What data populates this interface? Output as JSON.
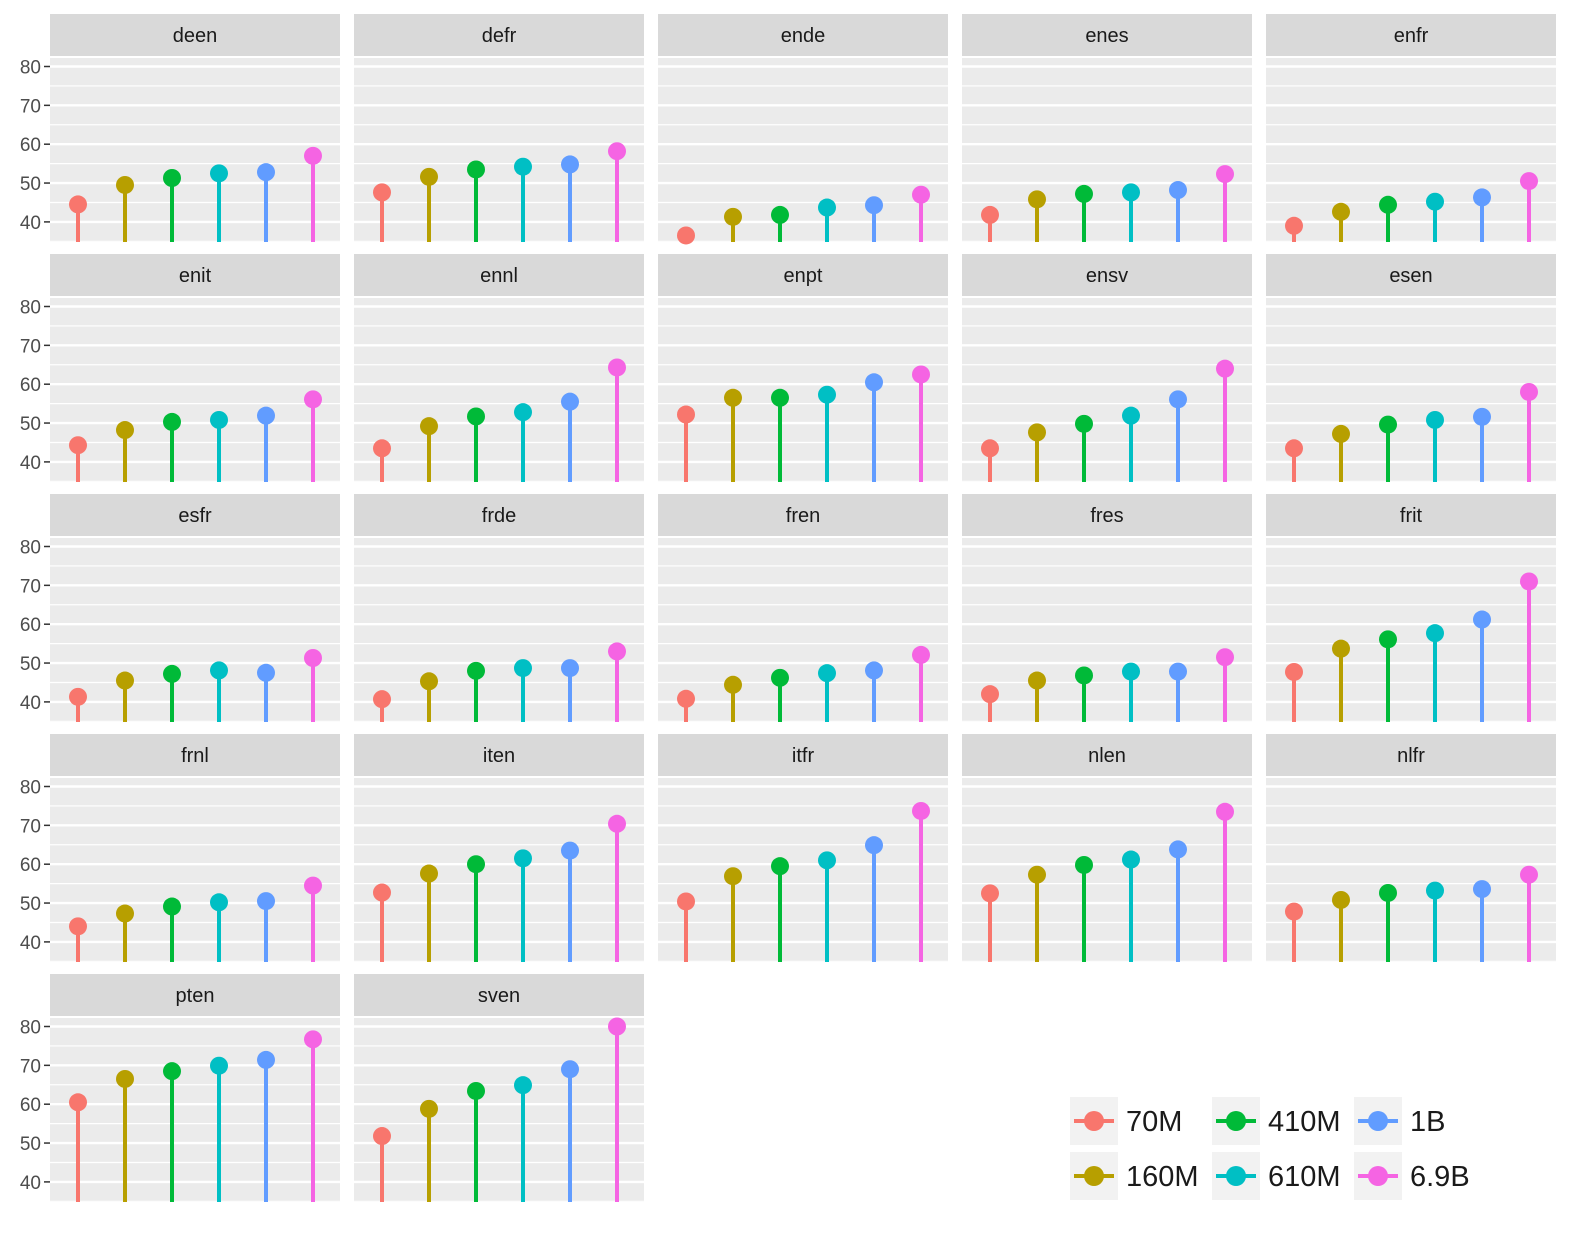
{
  "chart_data": {
    "type": "lollipop",
    "title": "",
    "xlabel": "",
    "ylabel": "",
    "ylim": [
      35,
      80
    ],
    "yticks": [
      40,
      50,
      60,
      70,
      80
    ],
    "grid": true,
    "legend_position": "bottom-right",
    "series": [
      {
        "name": "70M",
        "color": "#F8766D"
      },
      {
        "name": "160M",
        "color": "#B79F00"
      },
      {
        "name": "410M",
        "color": "#00BA38"
      },
      {
        "name": "610M",
        "color": "#00BFC4"
      },
      {
        "name": "1B",
        "color": "#619CFF"
      },
      {
        "name": "6.9B",
        "color": "#F564E3"
      }
    ],
    "panels": [
      {
        "label": "deen",
        "values": [
          44.5,
          49.5,
          51.3,
          52.5,
          52.8,
          57.0
        ]
      },
      {
        "label": "defr",
        "values": [
          47.6,
          51.6,
          53.5,
          54.2,
          54.8,
          58.2
        ]
      },
      {
        "label": "ende",
        "values": [
          36.5,
          41.3,
          41.8,
          43.7,
          44.3,
          47.0
        ]
      },
      {
        "label": "enes",
        "values": [
          41.8,
          45.8,
          47.2,
          47.6,
          48.2,
          52.3
        ]
      },
      {
        "label": "enfr",
        "values": [
          39.0,
          42.6,
          44.4,
          45.2,
          46.3,
          50.5
        ]
      },
      {
        "label": "enit",
        "values": [
          44.3,
          48.2,
          50.3,
          50.8,
          51.9,
          56.1
        ]
      },
      {
        "label": "ennl",
        "values": [
          43.5,
          49.2,
          51.7,
          52.8,
          55.5,
          64.3
        ]
      },
      {
        "label": "enpt",
        "values": [
          52.2,
          56.5,
          56.5,
          57.3,
          60.5,
          62.5
        ]
      },
      {
        "label": "ensv",
        "values": [
          43.5,
          47.6,
          49.8,
          51.9,
          56.1,
          64.0
        ]
      },
      {
        "label": "esen",
        "values": [
          43.5,
          47.2,
          49.6,
          50.8,
          51.6,
          58.0
        ]
      },
      {
        "label": "esfr",
        "values": [
          41.3,
          45.5,
          47.2,
          48.1,
          47.5,
          51.3
        ]
      },
      {
        "label": "frde",
        "values": [
          40.7,
          45.3,
          48.0,
          48.7,
          48.7,
          53.0
        ]
      },
      {
        "label": "fren",
        "values": [
          40.8,
          44.4,
          46.2,
          47.4,
          48.1,
          52.1
        ]
      },
      {
        "label": "fres",
        "values": [
          42.0,
          45.5,
          46.8,
          47.8,
          47.8,
          51.5
        ]
      },
      {
        "label": "frit",
        "values": [
          47.7,
          53.7,
          56.1,
          57.7,
          61.2,
          71.0
        ]
      },
      {
        "label": "frnl",
        "values": [
          44.0,
          47.3,
          49.1,
          50.2,
          50.5,
          54.5
        ]
      },
      {
        "label": "iten",
        "values": [
          52.7,
          57.6,
          60.0,
          61.5,
          63.5,
          70.4
        ]
      },
      {
        "label": "itfr",
        "values": [
          50.4,
          56.9,
          59.5,
          61.0,
          64.9,
          73.7
        ]
      },
      {
        "label": "nlen",
        "values": [
          52.5,
          57.3,
          59.8,
          61.2,
          63.8,
          73.5
        ]
      },
      {
        "label": "nlfr",
        "values": [
          47.8,
          50.8,
          52.6,
          53.2,
          53.6,
          57.3
        ]
      },
      {
        "label": "pten",
        "values": [
          60.5,
          66.5,
          68.5,
          69.9,
          71.4,
          76.7
        ]
      },
      {
        "label": "sven",
        "values": [
          51.8,
          58.8,
          63.4,
          64.9,
          69.0,
          80.0
        ]
      }
    ]
  }
}
